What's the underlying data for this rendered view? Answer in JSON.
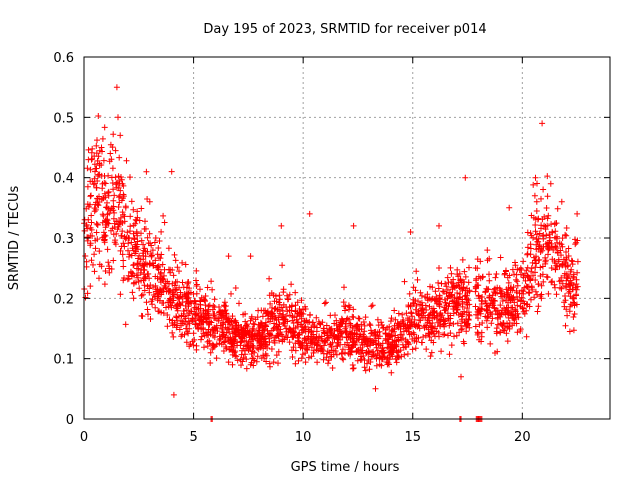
{
  "chart_data": {
    "type": "scatter",
    "title": "Day 195 of 2023, SRMTID for receiver p014",
    "xlabel": "GPS time / hours",
    "ylabel": "SRMTID / TECUs",
    "xlim": [
      0,
      24
    ],
    "ylim": [
      0,
      0.6
    ],
    "xticks": [
      0,
      5,
      10,
      15,
      20
    ],
    "xtick_labels": [
      "0",
      "5",
      "10",
      "15",
      "20"
    ],
    "yticks": [
      0,
      0.1,
      0.2,
      0.3,
      0.4,
      0.5,
      0.6
    ],
    "ytick_labels": [
      "0",
      "0.1",
      "0.2",
      "0.3",
      "0.4",
      "0.5",
      "0.6"
    ],
    "grid": true,
    "marker": "+",
    "series_color": "#ff0000",
    "trend": [
      {
        "x": 0.0,
        "y": 0.3
      },
      {
        "x": 0.5,
        "y": 0.36
      },
      {
        "x": 1.0,
        "y": 0.34
      },
      {
        "x": 1.5,
        "y": 0.33
      },
      {
        "x": 2.0,
        "y": 0.29
      },
      {
        "x": 2.5,
        "y": 0.26
      },
      {
        "x": 3.0,
        "y": 0.25
      },
      {
        "x": 3.5,
        "y": 0.23
      },
      {
        "x": 4.0,
        "y": 0.19
      },
      {
        "x": 5.0,
        "y": 0.17
      },
      {
        "x": 6.0,
        "y": 0.16
      },
      {
        "x": 7.0,
        "y": 0.13
      },
      {
        "x": 8.0,
        "y": 0.13
      },
      {
        "x": 9.0,
        "y": 0.17
      },
      {
        "x": 10.0,
        "y": 0.14
      },
      {
        "x": 11.0,
        "y": 0.13
      },
      {
        "x": 12.0,
        "y": 0.14
      },
      {
        "x": 13.0,
        "y": 0.12
      },
      {
        "x": 14.0,
        "y": 0.12
      },
      {
        "x": 15.0,
        "y": 0.16
      },
      {
        "x": 16.0,
        "y": 0.17
      },
      {
        "x": 17.0,
        "y": 0.19
      },
      {
        "x": 18.5,
        "y": 0.19
      },
      {
        "x": 19.0,
        "y": 0.18
      },
      {
        "x": 19.5,
        "y": 0.19
      },
      {
        "x": 20.0,
        "y": 0.2
      },
      {
        "x": 20.5,
        "y": 0.25
      },
      {
        "x": 21.0,
        "y": 0.3
      },
      {
        "x": 21.5,
        "y": 0.28
      },
      {
        "x": 22.0,
        "y": 0.23
      },
      {
        "x": 22.5,
        "y": 0.21
      }
    ],
    "spikes": [
      {
        "x": 0.2,
        "y": 0.43
      },
      {
        "x": 0.5,
        "y": 0.41
      },
      {
        "x": 0.8,
        "y": 0.45
      },
      {
        "x": 1.2,
        "y": 0.44
      },
      {
        "x": 1.5,
        "y": 0.55
      },
      {
        "x": 1.55,
        "y": 0.5
      },
      {
        "x": 1.65,
        "y": 0.47
      },
      {
        "x": 3.0,
        "y": 0.36
      },
      {
        "x": 4.0,
        "y": 0.41
      },
      {
        "x": 6.6,
        "y": 0.27
      },
      {
        "x": 7.6,
        "y": 0.27
      },
      {
        "x": 9.0,
        "y": 0.32
      },
      {
        "x": 10.3,
        "y": 0.34
      },
      {
        "x": 12.3,
        "y": 0.32
      },
      {
        "x": 14.9,
        "y": 0.31
      },
      {
        "x": 16.2,
        "y": 0.32
      },
      {
        "x": 17.4,
        "y": 0.4
      },
      {
        "x": 18.4,
        "y": 0.28
      },
      {
        "x": 19.4,
        "y": 0.35
      },
      {
        "x": 20.6,
        "y": 0.4
      },
      {
        "x": 20.9,
        "y": 0.49
      },
      {
        "x": 21.3,
        "y": 0.39
      },
      {
        "x": 21.8,
        "y": 0.36
      },
      {
        "x": 22.5,
        "y": 0.34
      },
      {
        "x": 4.1,
        "y": 0.04
      },
      {
        "x": 13.3,
        "y": 0.05
      },
      {
        "x": 17.2,
        "y": 0.07
      }
    ],
    "zero_points": [
      {
        "x": 5.8,
        "y": 0
      },
      {
        "x": 5.85,
        "y": 0
      },
      {
        "x": 17.15,
        "y": 0
      },
      {
        "x": 17.2,
        "y": 0
      },
      {
        "x": 17.9,
        "y": 0
      },
      {
        "x": 17.95,
        "y": 0
      },
      {
        "x": 18.0,
        "y": 0
      },
      {
        "x": 18.05,
        "y": 0
      },
      {
        "x": 18.1,
        "y": 0
      },
      {
        "x": 18.15,
        "y": 0
      }
    ],
    "gaps": [
      [
        17.6,
        17.85
      ],
      [
        18.2,
        18.3
      ]
    ],
    "data_range": [
      0,
      22.55
    ],
    "n_generated_points": 2600
  }
}
